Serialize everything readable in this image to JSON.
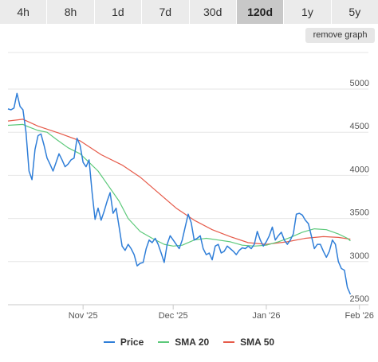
{
  "range_tabs": [
    {
      "label": "4h",
      "active": false
    },
    {
      "label": "8h",
      "active": false
    },
    {
      "label": "1d",
      "active": false
    },
    {
      "label": "7d",
      "active": false
    },
    {
      "label": "30d",
      "active": false
    },
    {
      "label": "120d",
      "active": true
    },
    {
      "label": "1y",
      "active": false
    },
    {
      "label": "5y",
      "active": false
    }
  ],
  "remove_graph_label": "remove graph",
  "colors": {
    "price": "#2f7ed8",
    "sma20": "#5cc97a",
    "sma50": "#e65b4a",
    "grid": "#e6e6e6",
    "axis_text": "#555555"
  },
  "chart_data": {
    "type": "line",
    "x_ticks": [
      "Nov '25",
      "Dec '25",
      "Jan '26",
      "Feb '26"
    ],
    "y_ticks": [
      2500,
      3000,
      3500,
      4000,
      4500,
      5000
    ],
    "ylim": [
      2500,
      5000
    ],
    "xlim": [
      "2025-10-07",
      "2026-02-04"
    ],
    "grid": true,
    "legend_position": "bottom",
    "series": [
      {
        "name": "Price",
        "points": [
          [
            "2025-10-07",
            4770
          ],
          [
            "2025-10-08",
            4760
          ],
          [
            "2025-10-09",
            4780
          ],
          [
            "2025-10-10",
            4950
          ],
          [
            "2025-10-11",
            4800
          ],
          [
            "2025-10-12",
            4760
          ],
          [
            "2025-10-13",
            4500
          ],
          [
            "2025-10-14",
            4050
          ],
          [
            "2025-10-15",
            3950
          ],
          [
            "2025-10-16",
            4300
          ],
          [
            "2025-10-17",
            4460
          ],
          [
            "2025-10-18",
            4480
          ],
          [
            "2025-10-19",
            4350
          ],
          [
            "2025-10-20",
            4200
          ],
          [
            "2025-10-21",
            4130
          ],
          [
            "2025-10-22",
            4050
          ],
          [
            "2025-10-23",
            4150
          ],
          [
            "2025-10-24",
            4250
          ],
          [
            "2025-10-25",
            4180
          ],
          [
            "2025-10-26",
            4100
          ],
          [
            "2025-10-27",
            4130
          ],
          [
            "2025-10-28",
            4180
          ],
          [
            "2025-10-29",
            4200
          ],
          [
            "2025-10-30",
            4430
          ],
          [
            "2025-10-31",
            4350
          ],
          [
            "2025-11-01",
            4150
          ],
          [
            "2025-11-02",
            4100
          ],
          [
            "2025-11-03",
            4180
          ],
          [
            "2025-11-04",
            3800
          ],
          [
            "2025-11-05",
            3490
          ],
          [
            "2025-11-06",
            3620
          ],
          [
            "2025-11-07",
            3480
          ],
          [
            "2025-11-08",
            3580
          ],
          [
            "2025-11-09",
            3700
          ],
          [
            "2025-11-10",
            3800
          ],
          [
            "2025-11-11",
            3560
          ],
          [
            "2025-11-12",
            3620
          ],
          [
            "2025-11-13",
            3400
          ],
          [
            "2025-11-14",
            3180
          ],
          [
            "2025-11-15",
            3130
          ],
          [
            "2025-11-16",
            3200
          ],
          [
            "2025-11-17",
            3150
          ],
          [
            "2025-11-18",
            3080
          ],
          [
            "2025-11-19",
            2950
          ],
          [
            "2025-11-20",
            2980
          ],
          [
            "2025-11-21",
            2990
          ],
          [
            "2025-11-22",
            3150
          ],
          [
            "2025-11-23",
            3250
          ],
          [
            "2025-11-24",
            3220
          ],
          [
            "2025-11-25",
            3270
          ],
          [
            "2025-11-26",
            3200
          ],
          [
            "2025-11-27",
            3100
          ],
          [
            "2025-11-28",
            2990
          ],
          [
            "2025-11-29",
            3200
          ],
          [
            "2025-11-30",
            3300
          ],
          [
            "2025-12-01",
            3250
          ],
          [
            "2025-12-02",
            3200
          ],
          [
            "2025-12-03",
            3150
          ],
          [
            "2025-12-04",
            3250
          ],
          [
            "2025-12-05",
            3400
          ],
          [
            "2025-12-06",
            3550
          ],
          [
            "2025-12-07",
            3450
          ],
          [
            "2025-12-08",
            3250
          ],
          [
            "2025-12-09",
            3270
          ],
          [
            "2025-12-10",
            3300
          ],
          [
            "2025-12-11",
            3150
          ],
          [
            "2025-12-12",
            3080
          ],
          [
            "2025-12-13",
            3100
          ],
          [
            "2025-12-14",
            3020
          ],
          [
            "2025-12-15",
            3180
          ],
          [
            "2025-12-16",
            3200
          ],
          [
            "2025-12-17",
            3100
          ],
          [
            "2025-12-18",
            3120
          ],
          [
            "2025-12-19",
            3180
          ],
          [
            "2025-12-20",
            3150
          ],
          [
            "2025-12-21",
            3120
          ],
          [
            "2025-12-22",
            3080
          ],
          [
            "2025-12-23",
            3130
          ],
          [
            "2025-12-24",
            3160
          ],
          [
            "2025-12-25",
            3150
          ],
          [
            "2025-12-26",
            3180
          ],
          [
            "2025-12-27",
            3150
          ],
          [
            "2025-12-28",
            3200
          ],
          [
            "2025-12-29",
            3350
          ],
          [
            "2025-12-30",
            3250
          ],
          [
            "2025-12-31",
            3180
          ],
          [
            "2026-01-01",
            3230
          ],
          [
            "2026-01-02",
            3300
          ],
          [
            "2026-01-03",
            3400
          ],
          [
            "2026-01-04",
            3250
          ],
          [
            "2026-01-05",
            3300
          ],
          [
            "2026-01-06",
            3340
          ],
          [
            "2026-01-07",
            3250
          ],
          [
            "2026-01-08",
            3200
          ],
          [
            "2026-01-09",
            3250
          ],
          [
            "2026-01-10",
            3320
          ],
          [
            "2026-01-11",
            3550
          ],
          [
            "2026-01-12",
            3560
          ],
          [
            "2026-01-13",
            3540
          ],
          [
            "2026-01-14",
            3480
          ],
          [
            "2026-01-15",
            3440
          ],
          [
            "2026-01-16",
            3300
          ],
          [
            "2026-01-17",
            3150
          ],
          [
            "2026-01-18",
            3200
          ],
          [
            "2026-01-19",
            3200
          ],
          [
            "2026-01-20",
            3120
          ],
          [
            "2026-01-21",
            3050
          ],
          [
            "2026-01-22",
            3120
          ],
          [
            "2026-01-23",
            3250
          ],
          [
            "2026-01-24",
            3200
          ],
          [
            "2026-01-25",
            3000
          ],
          [
            "2026-01-26",
            2920
          ],
          [
            "2026-01-27",
            2900
          ],
          [
            "2026-01-28",
            2700
          ],
          [
            "2026-01-29",
            2620
          ]
        ]
      },
      {
        "name": "SMA 20",
        "points": [
          [
            "2025-10-07",
            4580
          ],
          [
            "2025-10-12",
            4590
          ],
          [
            "2025-10-14",
            4560
          ],
          [
            "2025-10-17",
            4520
          ],
          [
            "2025-10-20",
            4500
          ],
          [
            "2025-10-23",
            4420
          ],
          [
            "2025-10-27",
            4320
          ],
          [
            "2025-10-31",
            4250
          ],
          [
            "2025-11-03",
            4150
          ],
          [
            "2025-11-06",
            4050
          ],
          [
            "2025-11-09",
            3900
          ],
          [
            "2025-11-13",
            3700
          ],
          [
            "2025-11-16",
            3500
          ],
          [
            "2025-11-20",
            3350
          ],
          [
            "2025-11-24",
            3270
          ],
          [
            "2025-11-28",
            3200
          ],
          [
            "2025-12-01",
            3180
          ],
          [
            "2025-12-04",
            3190
          ],
          [
            "2025-12-08",
            3250
          ],
          [
            "2025-12-12",
            3270
          ],
          [
            "2025-12-16",
            3250
          ],
          [
            "2025-12-20",
            3230
          ],
          [
            "2025-12-24",
            3190
          ],
          [
            "2025-12-28",
            3180
          ],
          [
            "2026-01-01",
            3190
          ],
          [
            "2026-01-05",
            3230
          ],
          [
            "2026-01-09",
            3280
          ],
          [
            "2026-01-13",
            3340
          ],
          [
            "2026-01-17",
            3380
          ],
          [
            "2026-01-21",
            3370
          ],
          [
            "2026-01-25",
            3320
          ],
          [
            "2026-01-28",
            3270
          ],
          [
            "2026-01-29",
            3240
          ]
        ]
      },
      {
        "name": "SMA 50",
        "points": [
          [
            "2025-10-07",
            4630
          ],
          [
            "2025-10-12",
            4650
          ],
          [
            "2025-10-17",
            4570
          ],
          [
            "2025-10-24",
            4490
          ],
          [
            "2025-10-31",
            4400
          ],
          [
            "2025-11-07",
            4240
          ],
          [
            "2025-11-14",
            4120
          ],
          [
            "2025-11-20",
            3980
          ],
          [
            "2025-11-26",
            3800
          ],
          [
            "2025-12-02",
            3620
          ],
          [
            "2025-12-08",
            3480
          ],
          [
            "2025-12-14",
            3370
          ],
          [
            "2025-12-20",
            3290
          ],
          [
            "2025-12-26",
            3220
          ],
          [
            "2026-01-01",
            3200
          ],
          [
            "2026-01-08",
            3230
          ],
          [
            "2026-01-14",
            3270
          ],
          [
            "2026-01-20",
            3290
          ],
          [
            "2026-01-25",
            3280
          ],
          [
            "2026-01-29",
            3260
          ]
        ]
      }
    ]
  }
}
